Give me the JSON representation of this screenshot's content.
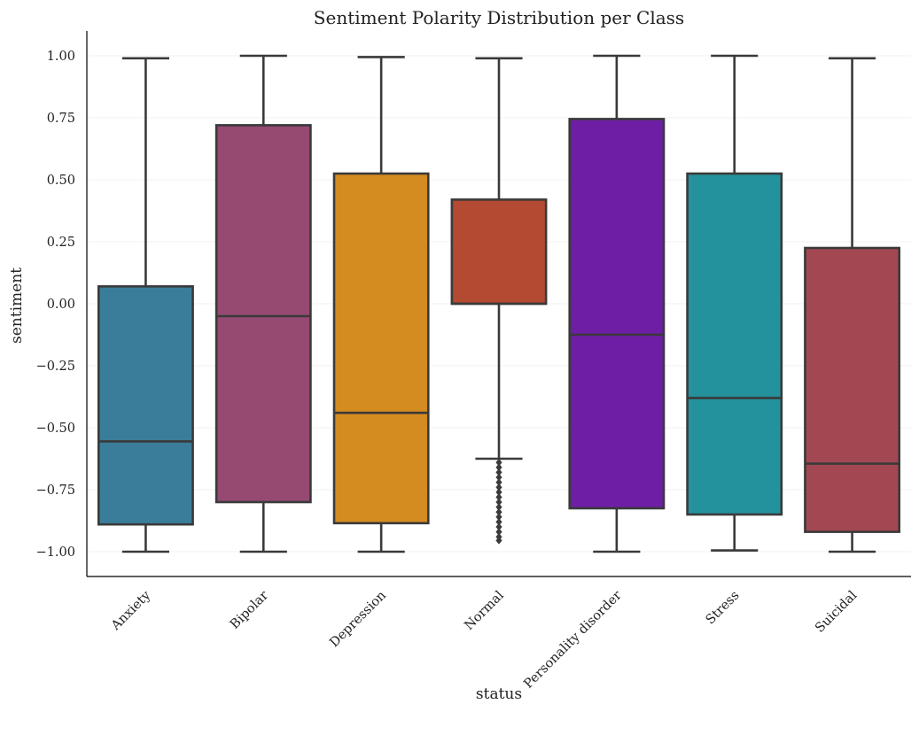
{
  "chart_data": {
    "type": "box",
    "title": "Sentiment Polarity Distribution per Class",
    "xlabel": "status",
    "ylabel": "sentiment",
    "ylim": [
      -1.1,
      1.1
    ],
    "yticks": [
      1.0,
      0.75,
      0.5,
      0.25,
      0.0,
      -0.25,
      -0.5,
      -0.75,
      -1.0
    ],
    "ytick_labels": [
      "1.00",
      "0.75",
      "0.50",
      "0.25",
      "0.00",
      "−0.25",
      "−0.50",
      "−0.75",
      "−1.00"
    ],
    "grid": "horizontal",
    "categories": [
      "Anxiety",
      "Bipolar",
      "Depression",
      "Normal",
      "Personality disorder",
      "Stress",
      "Suicidal"
    ],
    "boxes": [
      {
        "category": "Anxiety",
        "whisker_low": -1.0,
        "q1": -0.89,
        "median": -0.555,
        "q3": 0.07,
        "whisker_high": 0.99,
        "color": "#3a7d9b"
      },
      {
        "category": "Bipolar",
        "whisker_low": -1.0,
        "q1": -0.8,
        "median": -0.05,
        "q3": 0.72,
        "whisker_high": 1.0,
        "color": "#964a72"
      },
      {
        "category": "Depression",
        "whisker_low": -1.0,
        "q1": -0.885,
        "median": -0.44,
        "q3": 0.525,
        "whisker_high": 0.995,
        "color": "#d48b1f"
      },
      {
        "category": "Normal",
        "whisker_low": -0.625,
        "q1": 0.0,
        "median": 0.0,
        "q3": 0.42,
        "whisker_high": 0.99,
        "color": "#b34a31",
        "outliers": [
          -0.64,
          -0.66,
          -0.68,
          -0.7,
          -0.72,
          -0.74,
          -0.76,
          -0.78,
          -0.8,
          -0.82,
          -0.84,
          -0.86,
          -0.88,
          -0.9,
          -0.92,
          -0.94,
          -0.955
        ]
      },
      {
        "category": "Personality disorder",
        "whisker_low": -1.0,
        "q1": -0.825,
        "median": -0.125,
        "q3": 0.745,
        "whisker_high": 1.0,
        "color": "#6e1ea4"
      },
      {
        "category": "Stress",
        "whisker_low": -0.995,
        "q1": -0.85,
        "median": -0.38,
        "q3": 0.525,
        "whisker_high": 1.0,
        "color": "#23929c"
      },
      {
        "category": "Suicidal",
        "whisker_low": -1.0,
        "q1": -0.92,
        "median": -0.645,
        "q3": 0.225,
        "whisker_high": 0.99,
        "color": "#a34852"
      }
    ]
  }
}
